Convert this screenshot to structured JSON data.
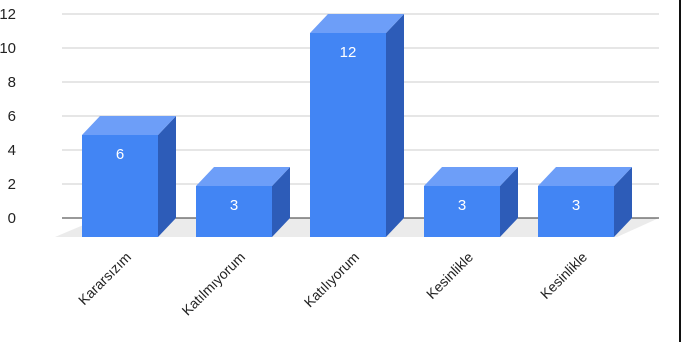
{
  "chart_data": {
    "type": "bar",
    "style": "3d",
    "categories": [
      "Kararsızım",
      "Katılmıyorum",
      "Katılıyorum",
      "Kesinlikle",
      "Kesinlikle"
    ],
    "values": [
      6,
      3,
      12,
      3,
      3
    ],
    "data_labels": [
      "6",
      "3",
      "12",
      "3",
      "3"
    ],
    "yticks": [
      "0",
      "2",
      "4",
      "6",
      "8",
      "10",
      "12"
    ],
    "ylim": [
      0,
      12
    ],
    "grid": true,
    "legend": "none",
    "colors": {
      "bar_front": "#4285F4",
      "bar_top": "#6D9EF8",
      "bar_side": "#2D5CB8",
      "floor": "#EBEBEB",
      "grid": "#CCCCCC",
      "axis": "#333333"
    }
  }
}
